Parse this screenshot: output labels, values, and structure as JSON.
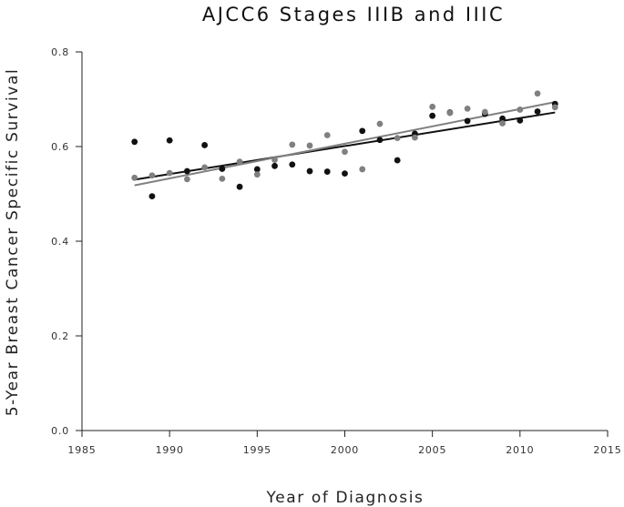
{
  "chart_data": {
    "type": "scatter",
    "title": "AJCC6 Stages IIIB and IIIC",
    "xlabel": "Year of Diagnosis",
    "ylabel": "5-Year Breast Cancer Specific Survival",
    "xlim": [
      1985,
      2015
    ],
    "ylim": [
      0.0,
      0.8
    ],
    "xticks": [
      1985,
      1990,
      1995,
      2000,
      2005,
      2010,
      2015
    ],
    "yticks": [
      0.0,
      0.2,
      0.4,
      0.6,
      0.8
    ],
    "xtick_labels": [
      "1985",
      "1990",
      "1995",
      "2000",
      "2005",
      "2010",
      "2015"
    ],
    "ytick_labels": [
      "0.0",
      "0.2",
      "0.4",
      "0.6",
      "0.8"
    ],
    "grid": false,
    "series": [
      {
        "color": "#111111",
        "x": [
          1988,
          1989,
          1990,
          1991,
          1992,
          1993,
          1994,
          1995,
          1996,
          1997,
          1998,
          1999,
          2000,
          2001,
          2002,
          2003,
          2004,
          2005,
          2006,
          2007,
          2008,
          2009,
          2010,
          2011,
          2012
        ],
        "y": [
          0.61,
          0.495,
          0.613,
          0.548,
          0.603,
          0.553,
          0.515,
          0.552,
          0.559,
          0.562,
          0.548,
          0.547,
          0.543,
          0.633,
          0.614,
          0.571,
          0.627,
          0.665,
          0.672,
          0.654,
          0.669,
          0.659,
          0.655,
          0.674,
          0.69
        ],
        "trend": [
          [
            1988,
            0.53
          ],
          [
            2012,
            0.672
          ]
        ]
      },
      {
        "color": "#808080",
        "x": [
          1988,
          1989,
          1990,
          1991,
          1992,
          1993,
          1994,
          1995,
          1996,
          1997,
          1998,
          1999,
          2000,
          2001,
          2002,
          2003,
          2004,
          2005,
          2006,
          2007,
          2008,
          2009,
          2010,
          2011,
          2012
        ],
        "y": [
          0.534,
          0.539,
          0.544,
          0.531,
          0.556,
          0.532,
          0.568,
          0.541,
          0.572,
          0.604,
          0.602,
          0.624,
          0.589,
          0.552,
          0.648,
          0.618,
          0.619,
          0.684,
          0.671,
          0.68,
          0.673,
          0.649,
          0.678,
          0.712,
          0.683
        ],
        "trend": [
          [
            1988,
            0.518
          ],
          [
            2012,
            0.694
          ]
        ]
      }
    ]
  }
}
